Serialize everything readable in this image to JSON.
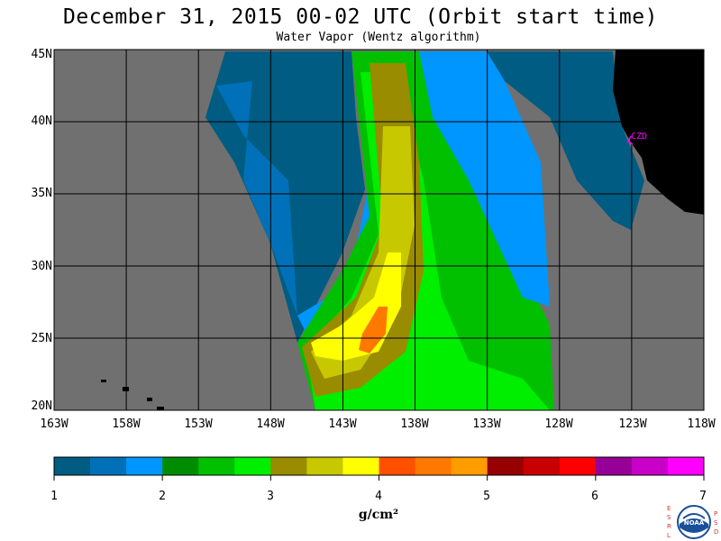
{
  "header": {
    "title": "December 31, 2015  00-02 UTC  (Orbit start time)",
    "subtitle": "Water Vapor (Wentz algorithm)"
  },
  "map": {
    "lat_labels": [
      "45N",
      "40N",
      "35N",
      "30N",
      "25N",
      "20N"
    ],
    "lon_labels": [
      "163W",
      "158W",
      "153W",
      "148W",
      "143W",
      "138W",
      "133W",
      "128W",
      "123W",
      "118W"
    ],
    "station_label": "CZD",
    "lon_range": [
      -163,
      -118
    ],
    "lat_range": [
      20,
      45
    ],
    "colors": {
      "background": "#707070",
      "land": "#000000",
      "grid": "#000000",
      "station": "#ff00ff"
    }
  },
  "colorbar": {
    "ticks": [
      "1",
      "2",
      "3",
      "4",
      "5",
      "6",
      "7"
    ],
    "units": "g/cm²",
    "range": [
      1,
      7
    ],
    "colors": [
      "#005c82",
      "#0071b8",
      "#0096ff",
      "#008c00",
      "#00c000",
      "#00ee00",
      "#998c00",
      "#c8c800",
      "#ffff00",
      "#ff5000",
      "#ff7800",
      "#ff9c00",
      "#960000",
      "#c80000",
      "#ff0000",
      "#960096",
      "#c800c8",
      "#ff00ff"
    ]
  },
  "logo": {
    "left_letters": [
      "E",
      "S",
      "R",
      "L"
    ],
    "right_letters": [
      "P",
      "S",
      "D"
    ],
    "text": "NOAA"
  }
}
